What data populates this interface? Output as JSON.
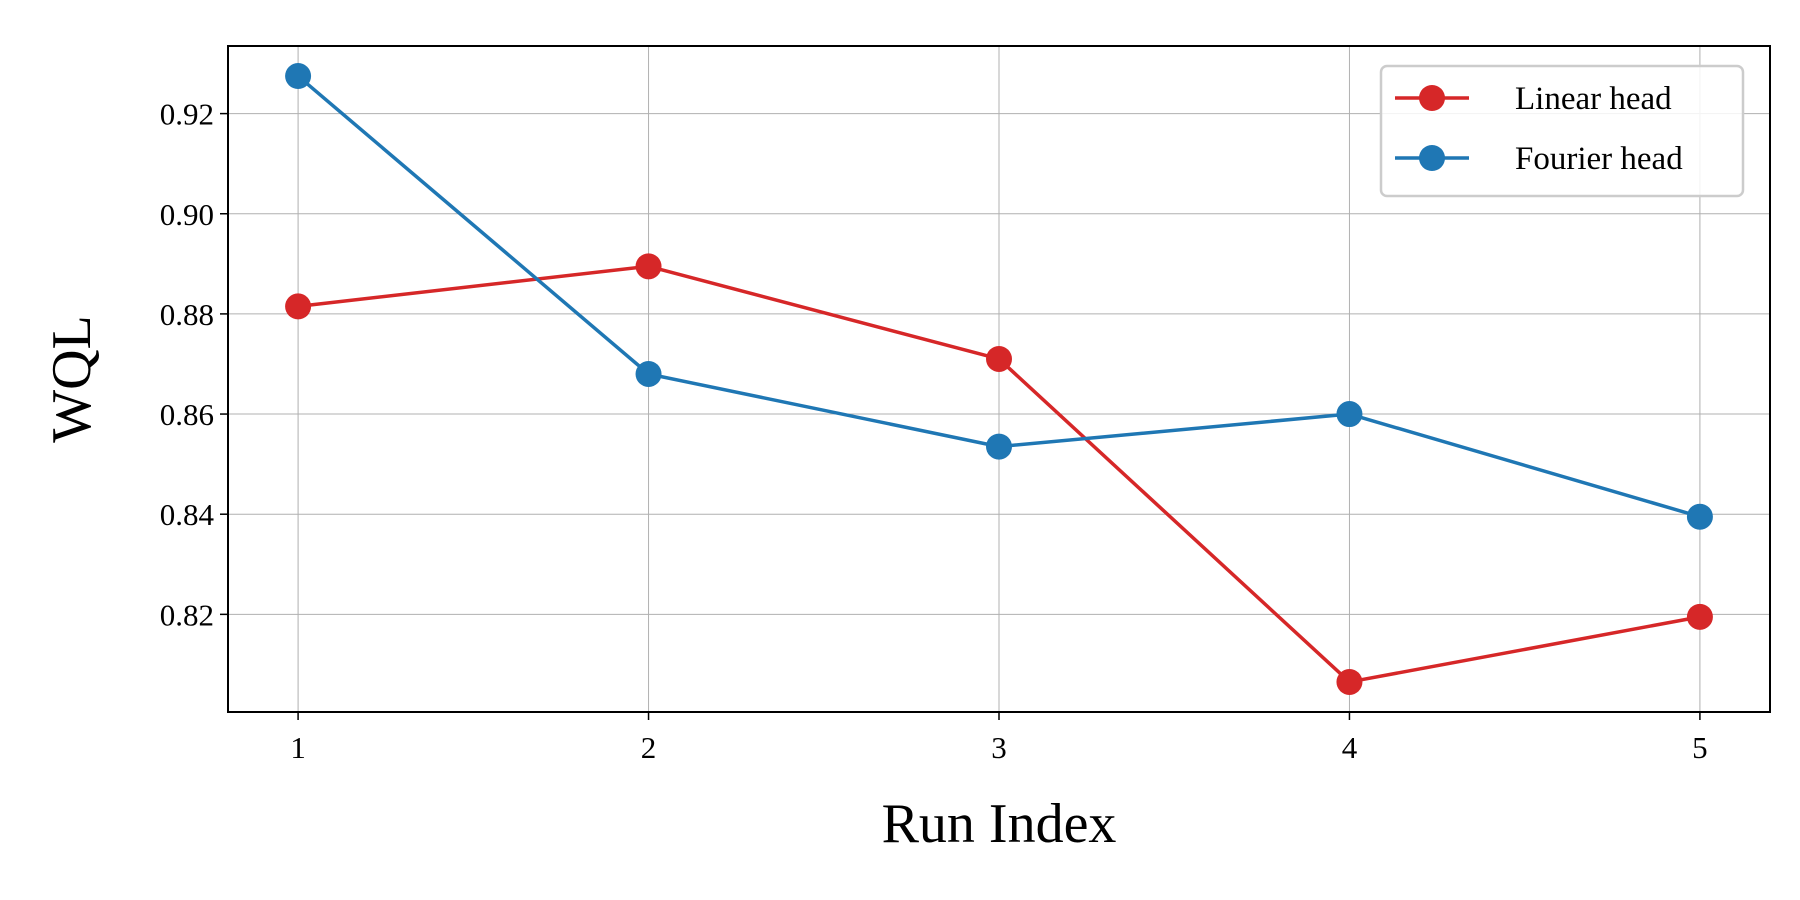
{
  "chart_data": {
    "type": "line",
    "x": [
      1,
      2,
      3,
      4,
      5
    ],
    "xlabel": "Run Index",
    "ylabel": "WQL",
    "xlim": [
      0.8,
      5.2
    ],
    "ylim": [
      0.8005,
      0.9335
    ],
    "xticks": [
      "1",
      "2",
      "3",
      "4",
      "5"
    ],
    "yticks": [
      "0.82",
      "0.84",
      "0.86",
      "0.88",
      "0.90",
      "0.92"
    ],
    "ytick_values": [
      0.82,
      0.84,
      0.86,
      0.88,
      0.9,
      0.92
    ],
    "grid": true,
    "legend_position": "top-right",
    "series": [
      {
        "name": "Linear head",
        "color": "#d62728",
        "marker": "circle",
        "values": [
          0.8815,
          0.8895,
          0.871,
          0.8065,
          0.8195
        ]
      },
      {
        "name": "Fourier head",
        "color": "#1f77b4",
        "marker": "circle",
        "values": [
          0.9275,
          0.868,
          0.8535,
          0.86,
          0.8395
        ]
      }
    ]
  }
}
